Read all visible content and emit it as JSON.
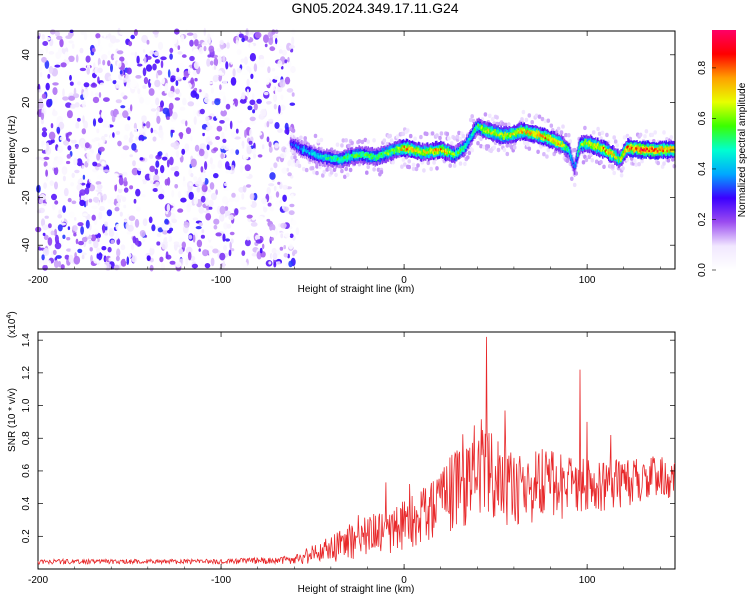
{
  "title": "GN05.2024.349.17.11.G24",
  "chart_data": [
    {
      "type": "heatmap",
      "xlabel": "Height of straight line (km)",
      "ylabel": "Frequency (Hz)",
      "xlim": [
        -200,
        148
      ],
      "ylim": [
        -50,
        50
      ],
      "xticks": [
        "-200",
        "-100",
        "0",
        "100"
      ],
      "yticks": [
        "-40",
        "-20",
        "0",
        "20",
        "40"
      ],
      "colorbar": {
        "label": "Normalized spectral amplitude",
        "range": [
          0,
          0.95
        ],
        "ticks": [
          "0.0",
          "0.2",
          "0.4",
          "0.6",
          "0.8"
        ],
        "colors": [
          "#ffffff",
          "#f1e7ff",
          "#9b4cf0",
          "#3b00ff",
          "#00a8ff",
          "#00ffd0",
          "#3bff00",
          "#e8ff00",
          "#ffa000",
          "#ff0000",
          "#ff0066"
        ]
      },
      "noise_region_x": [
        -200,
        -60
      ],
      "ridge": {
        "x": [
          -62,
          -55,
          -45,
          -35,
          -25,
          -15,
          -5,
          0,
          10,
          20,
          28,
          33,
          36,
          40,
          45,
          55,
          65,
          75,
          85,
          90,
          93,
          96,
          100,
          110,
          118,
          122,
          130,
          140,
          148
        ],
        "freq": [
          3,
          0,
          -3,
          -4,
          -2,
          -3,
          0,
          1,
          -1,
          0,
          -2,
          1,
          5,
          10,
          8,
          6,
          8,
          6,
          3,
          0,
          -8,
          2,
          3,
          0,
          -4,
          1,
          0,
          0,
          0
        ],
        "amplitude": [
          0.3,
          0.4,
          0.45,
          0.5,
          0.55,
          0.55,
          0.6,
          0.75,
          0.65,
          0.75,
          0.55,
          0.5,
          0.45,
          0.55,
          0.65,
          0.65,
          0.7,
          0.75,
          0.7,
          0.5,
          0.3,
          0.55,
          0.65,
          0.75,
          0.6,
          0.75,
          0.85,
          0.8,
          0.75
        ]
      }
    },
    {
      "type": "line",
      "xlabel": "Height of straight line (km)",
      "ylabel": "SNR (10 * v/v)",
      "yscale_note": "(x10",
      "yscale_exp": "4",
      "xlim": [
        -200,
        148
      ],
      "ylim": [
        0,
        1.45
      ],
      "xticks": [
        "-200",
        "-100",
        "0",
        "100"
      ],
      "yticks": [
        "0.2",
        "0.4",
        "0.6",
        "0.8",
        "1.0",
        "1.2",
        "1.4"
      ],
      "line_color": "#e8292b",
      "series": [
        {
          "envelope_x": [
            -200,
            -100,
            -60,
            -50,
            -40,
            -30,
            -20,
            -10,
            0,
            10,
            20,
            30,
            40,
            50,
            60,
            70,
            80,
            90,
            100,
            110,
            120,
            130,
            140,
            148
          ],
          "envelope_max": [
            0.06,
            0.06,
            0.08,
            0.15,
            0.2,
            0.28,
            0.33,
            0.36,
            0.42,
            0.5,
            0.6,
            0.8,
            0.95,
            0.8,
            0.7,
            0.72,
            0.75,
            0.72,
            0.68,
            0.65,
            0.7,
            0.68,
            0.7,
            0.65
          ],
          "envelope_min": [
            0.03,
            0.03,
            0.03,
            0.03,
            0.04,
            0.05,
            0.06,
            0.08,
            0.1,
            0.15,
            0.2,
            0.22,
            0.25,
            0.26,
            0.27,
            0.28,
            0.3,
            0.3,
            0.32,
            0.35,
            0.38,
            0.4,
            0.4,
            0.4
          ],
          "spikes_x": [
            -25,
            -10,
            3,
            30,
            45,
            55,
            96,
            100,
            113
          ],
          "spikes_y": [
            0.33,
            0.53,
            0.52,
            0.7,
            1.42,
            0.97,
            1.22,
            0.9,
            0.82
          ]
        }
      ]
    }
  ]
}
